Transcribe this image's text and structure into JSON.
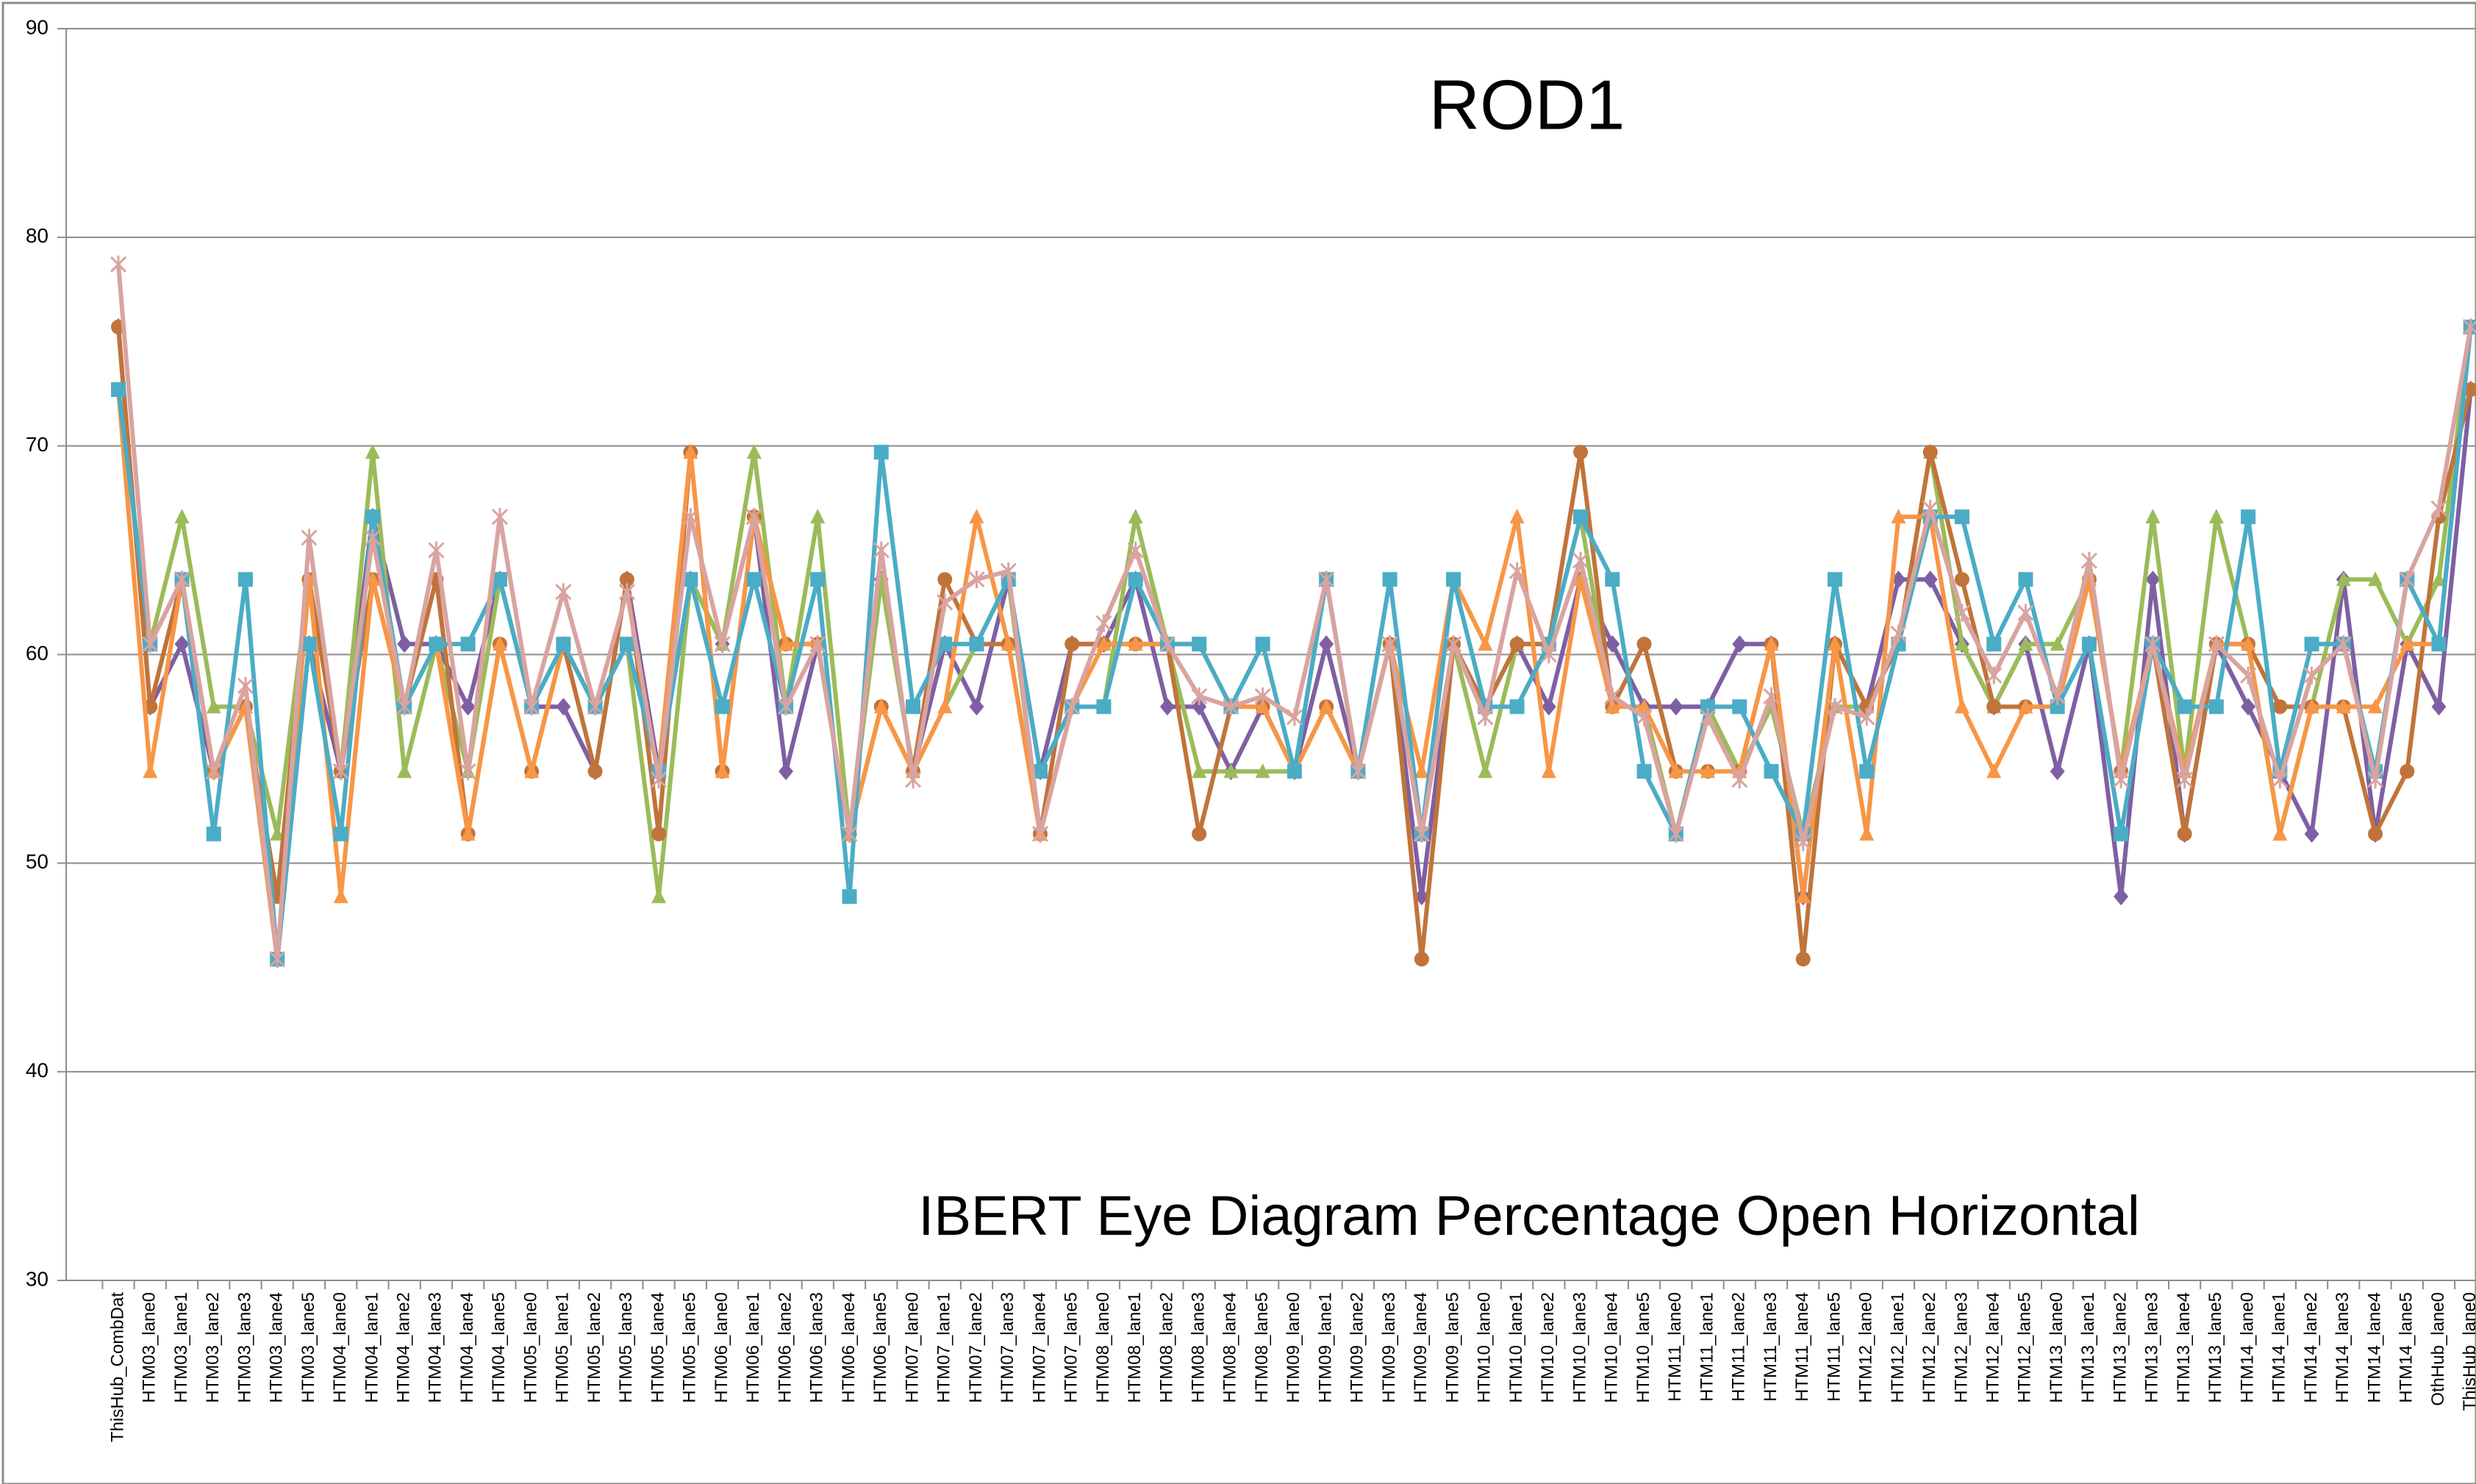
{
  "chart_data": {
    "type": "line",
    "title": "ROD1",
    "subtitle": "IBERT Eye Diagram Percentage Open Horizontal",
    "categories": [
      "ThisHub_CombDat",
      "HTM03_lane0",
      "HTM03_lane1",
      "HTM03_lane2",
      "HTM03_lane3",
      "HTM03_lane4",
      "HTM03_lane5",
      "HTM04_lane0",
      "HTM04_lane1",
      "HTM04_lane2",
      "HTM04_lane3",
      "HTM04_lane4",
      "HTM04_lane5",
      "HTM05_lane0",
      "HTM05_lane1",
      "HTM05_lane2",
      "HTM05_lane3",
      "HTM05_lane4",
      "HTM05_lane5",
      "HTM06_lane0",
      "HTM06_lane1",
      "HTM06_lane2",
      "HTM06_lane3",
      "HTM06_lane4",
      "HTM06_lane5",
      "HTM07_lane0",
      "HTM07_lane1",
      "HTM07_lane2",
      "HTM07_lane3",
      "HTM07_lane4",
      "HTM07_lane5",
      "HTM08_lane0",
      "HTM08_lane1",
      "HTM08_lane2",
      "HTM08_lane3",
      "HTM08_lane4",
      "HTM08_lane5",
      "HTM09_lane0",
      "HTM09_lane1",
      "HTM09_lane2",
      "HTM09_lane3",
      "HTM09_lane4",
      "HTM09_lane5",
      "HTM10_lane0",
      "HTM10_lane1",
      "HTM10_lane2",
      "HTM10_lane3",
      "HTM10_lane4",
      "HTM10_lane5",
      "HTM11_lane0",
      "HTM11_lane1",
      "HTM11_lane2",
      "HTM11_lane3",
      "HTM11_lane4",
      "HTM11_lane5",
      "HTM12_lane0",
      "HTM12_lane1",
      "HTM12_lane2",
      "HTM12_lane3",
      "HTM12_lane4",
      "HTM12_lane5",
      "HTM13_lane0",
      "HTM13_lane1",
      "HTM13_lane2",
      "HTM13_lane3",
      "HTM13_lane4",
      "HTM13_lane5",
      "HTM14_lane0",
      "HTM14_lane1",
      "HTM14_lane2",
      "HTM14_lane3",
      "HTM14_lane4",
      "HTM14_lane5",
      "OthHub_lane0",
      "ThisHub_lane0"
    ],
    "series": [
      {
        "color": "#7f5fa3",
        "marker": "diamond",
        "values": [
          75.7,
          57.5,
          60.5,
          54.4,
          57.5,
          45.4,
          60.5,
          54.4,
          66.6,
          60.5,
          60.5,
          57.5,
          63.6,
          57.5,
          57.5,
          54.4,
          63.6,
          54.4,
          63.6,
          60.5,
          66.6,
          54.4,
          60.5,
          51.4,
          63.6,
          54.4,
          60.5,
          57.5,
          63.6,
          54.4,
          60.5,
          60.5,
          63.6,
          57.5,
          57.5,
          54.4,
          57.5,
          54.4,
          60.5,
          54.4,
          60.5,
          48.4,
          60.5,
          57.5,
          60.5,
          57.5,
          63.6,
          60.5,
          57.5,
          57.5,
          57.5,
          60.5,
          60.5,
          48.4,
          60.5,
          57.5,
          63.6,
          63.6,
          60.5,
          57.5,
          60.5,
          54.4,
          60.5,
          48.4,
          63.6,
          51.4,
          60.5,
          57.5,
          54.4,
          51.4,
          63.6,
          51.4,
          60.5,
          57.5,
          72.7
        ]
      },
      {
        "color": "#9bbb59",
        "marker": "triangle",
        "values": [
          72.7,
          60.5,
          66.6,
          57.5,
          57.5,
          51.4,
          63.6,
          54.4,
          69.7,
          54.4,
          60.5,
          54.4,
          63.6,
          57.5,
          60.5,
          57.5,
          60.5,
          48.4,
          63.6,
          60.5,
          69.7,
          57.5,
          66.6,
          51.4,
          63.6,
          54.4,
          57.5,
          60.5,
          63.6,
          51.4,
          57.5,
          57.5,
          66.6,
          60.5,
          54.4,
          54.4,
          54.4,
          54.4,
          63.6,
          54.4,
          60.5,
          51.4,
          60.5,
          54.4,
          60.5,
          60.5,
          66.6,
          57.5,
          57.5,
          51.4,
          57.5,
          54.4,
          57.5,
          51.4,
          57.5,
          57.5,
          60.5,
          69.7,
          60.5,
          57.5,
          60.5,
          60.5,
          63.6,
          54.4,
          66.6,
          54.4,
          66.6,
          60.5,
          51.4,
          57.5,
          63.6,
          63.6,
          60.5,
          63.6,
          75.7
        ]
      },
      {
        "color": "#c0743a",
        "marker": "circle",
        "values": [
          75.7,
          57.5,
          63.6,
          54.4,
          57.5,
          48.4,
          63.6,
          54.4,
          63.6,
          57.5,
          63.6,
          51.4,
          60.5,
          54.4,
          60.5,
          54.4,
          63.6,
          51.4,
          69.7,
          54.4,
          66.6,
          60.5,
          60.5,
          51.4,
          57.5,
          54.4,
          63.6,
          60.5,
          60.5,
          51.4,
          60.5,
          60.5,
          60.5,
          60.5,
          51.4,
          57.5,
          57.5,
          54.4,
          57.5,
          54.4,
          60.5,
          45.4,
          60.5,
          57.5,
          60.5,
          60.5,
          69.7,
          57.5,
          60.5,
          54.4,
          54.4,
          54.4,
          60.5,
          45.4,
          60.5,
          57.5,
          60.5,
          69.7,
          63.6,
          57.5,
          57.5,
          57.5,
          63.6,
          54.4,
          60.5,
          51.4,
          60.5,
          60.5,
          57.5,
          57.5,
          57.5,
          51.4,
          54.4,
          66.6,
          72.7
        ]
      },
      {
        "color": "#f79646",
        "marker": "triangle",
        "values": [
          72.7,
          54.4,
          63.6,
          54.4,
          57.5,
          45.4,
          63.6,
          48.4,
          63.6,
          57.5,
          60.5,
          51.4,
          60.5,
          54.4,
          60.5,
          57.5,
          60.5,
          54.4,
          69.7,
          54.4,
          66.6,
          60.5,
          60.5,
          51.4,
          57.5,
          54.4,
          57.5,
          66.6,
          60.5,
          51.4,
          57.5,
          60.5,
          60.5,
          60.5,
          60.5,
          57.5,
          57.5,
          54.4,
          57.5,
          54.4,
          60.5,
          54.4,
          63.6,
          60.5,
          66.6,
          54.4,
          63.6,
          57.5,
          57.5,
          54.4,
          54.4,
          54.4,
          60.5,
          48.4,
          60.5,
          51.4,
          66.6,
          66.6,
          57.5,
          54.4,
          57.5,
          57.5,
          63.6,
          54.4,
          60.5,
          54.4,
          60.5,
          60.5,
          51.4,
          57.5,
          57.5,
          57.5,
          60.5,
          60.5,
          75.7
        ]
      },
      {
        "color": "#4bacc6",
        "marker": "square",
        "values": [
          72.7,
          60.5,
          63.6,
          51.4,
          63.6,
          45.4,
          60.5,
          51.4,
          66.6,
          57.5,
          60.5,
          60.5,
          63.6,
          57.5,
          60.5,
          57.5,
          60.5,
          54.4,
          63.6,
          57.5,
          63.6,
          57.5,
          63.6,
          48.4,
          69.7,
          57.5,
          60.5,
          60.5,
          63.6,
          54.4,
          57.5,
          57.5,
          63.6,
          60.5,
          60.5,
          57.5,
          60.5,
          54.4,
          63.6,
          54.4,
          63.6,
          51.4,
          63.6,
          57.5,
          57.5,
          60.5,
          66.6,
          63.6,
          54.4,
          51.4,
          57.5,
          57.5,
          54.4,
          51.4,
          63.6,
          54.4,
          60.5,
          66.6,
          66.6,
          60.5,
          63.6,
          57.5,
          60.5,
          51.4,
          60.5,
          57.5,
          57.5,
          66.6,
          54.4,
          60.5,
          60.5,
          54.4,
          63.6,
          60.5,
          75.7
        ]
      },
      {
        "color": "#d9a3a0",
        "marker": "star",
        "values": [
          78.7,
          60.5,
          63.6,
          54.4,
          58.5,
          45.4,
          65.6,
          54.4,
          65.6,
          57.5,
          65,
          54.4,
          66.6,
          57.5,
          63,
          57.5,
          63,
          54,
          66.6,
          60.5,
          66.6,
          57.5,
          60.5,
          51.4,
          65,
          54,
          62.5,
          63.6,
          64,
          51.4,
          57.5,
          61.5,
          65,
          60.5,
          58,
          57.5,
          58,
          57,
          63.6,
          54.4,
          60.5,
          51.4,
          60.5,
          57,
          64,
          60,
          64.5,
          58,
          57,
          51.4,
          57,
          54,
          58,
          51,
          57.5,
          57,
          61,
          67,
          62,
          59,
          62,
          58,
          64.5,
          54,
          60.5,
          54,
          60.5,
          59,
          54,
          59,
          60.5,
          54,
          63.6,
          67,
          75.7
        ]
      }
    ],
    "ylim": [
      30,
      90
    ],
    "yticks": [
      30,
      40,
      50,
      60,
      70,
      80,
      90
    ],
    "grid": true
  }
}
